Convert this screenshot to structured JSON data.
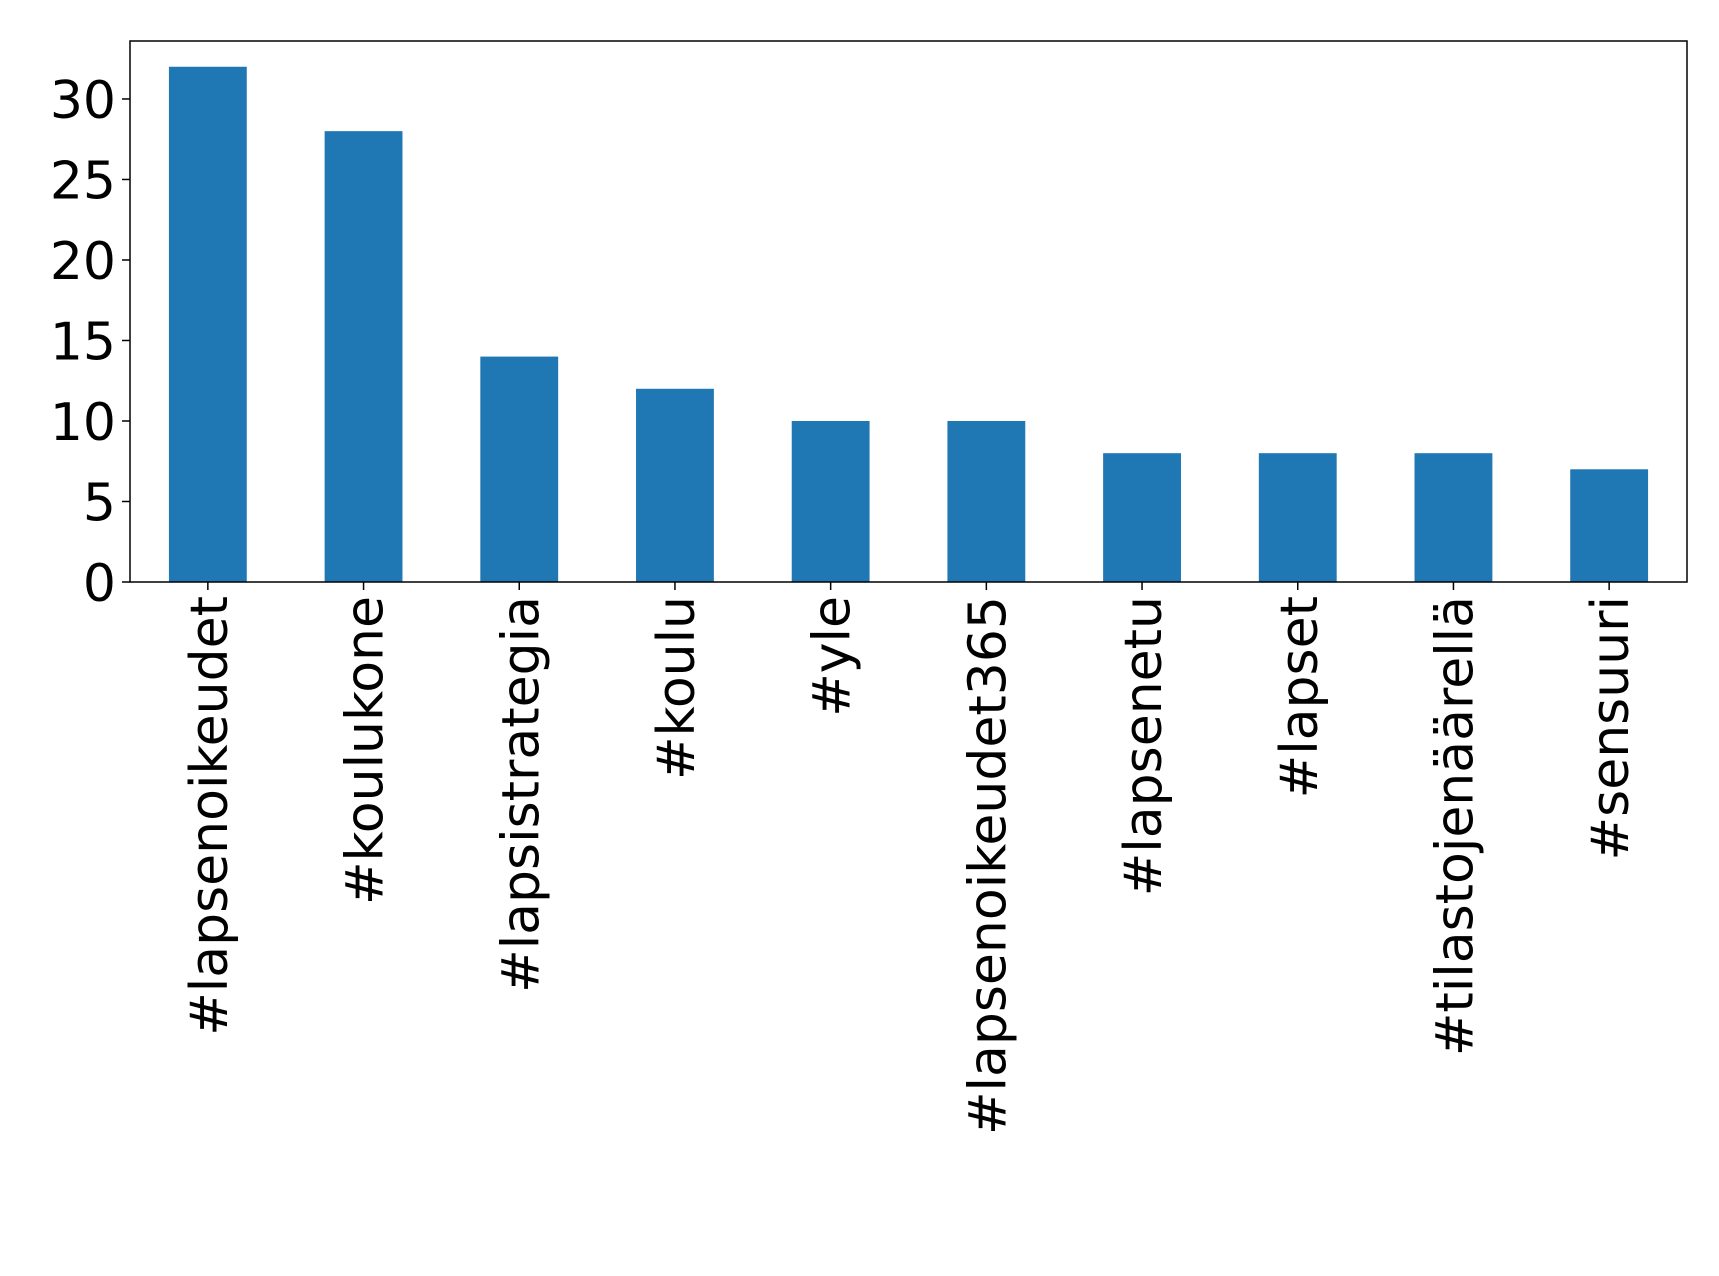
{
  "chart_data": {
    "type": "bar",
    "categories": [
      "#lapsenoikeudet",
      "#koulukone",
      "#lapsistrategia",
      "#koulu",
      "#yle",
      "#lapsenoikeudet365",
      "#lapsenetu",
      "#lapset",
      "#tilastojenäärellä",
      "#sensuuri"
    ],
    "values": [
      32,
      28,
      14,
      12,
      10,
      10,
      8,
      8,
      8,
      7
    ],
    "color": "#1f77b4",
    "ylim": [
      0,
      33.6
    ],
    "yticks": [
      0,
      5,
      10,
      15,
      20,
      25,
      30
    ]
  }
}
